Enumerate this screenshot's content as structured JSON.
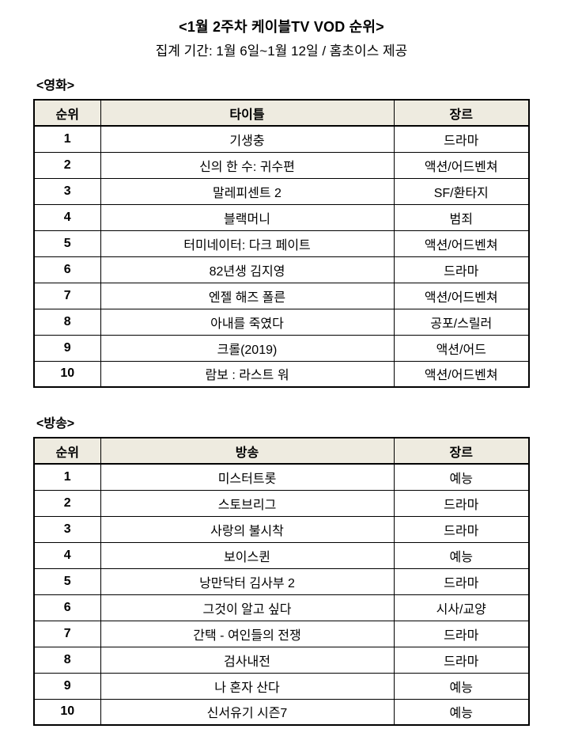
{
  "page": {
    "title": "<1월 2주차 케이블TV VOD 순위>",
    "subtitle": "집계 기간: 1월 6일~1월 12일 / 홈초이스 제공"
  },
  "colors": {
    "header_bg": "#EEEBE0",
    "border": "#000000",
    "text": "#000000"
  },
  "movies": {
    "section_label": "<영화>",
    "headers": [
      "순위",
      "타이틀",
      "장르"
    ],
    "rows": [
      {
        "rank": "1",
        "title": "기생충",
        "genre": "드라마"
      },
      {
        "rank": "2",
        "title": "신의 한 수: 귀수편",
        "genre": "액션/어드벤쳐"
      },
      {
        "rank": "3",
        "title": "말레피센트 2",
        "genre": "SF/환타지"
      },
      {
        "rank": "4",
        "title": "블랙머니",
        "genre": "범죄"
      },
      {
        "rank": "5",
        "title": "터미네이터: 다크 페이트",
        "genre": "액션/어드벤쳐"
      },
      {
        "rank": "6",
        "title": "82년생 김지영",
        "genre": "드라마"
      },
      {
        "rank": "7",
        "title": "엔젤 해즈 폴른",
        "genre": "액션/어드벤쳐"
      },
      {
        "rank": "8",
        "title": "아내를 죽였다",
        "genre": "공포/스릴러"
      },
      {
        "rank": "9",
        "title": "크롤(2019)",
        "genre": "액션/어드"
      },
      {
        "rank": "10",
        "title": "람보 : 라스트 워",
        "genre": "액션/어드벤쳐"
      }
    ]
  },
  "broadcast": {
    "section_label": "<방송>",
    "headers": [
      "순위",
      "방송",
      "장르"
    ],
    "rows": [
      {
        "rank": "1",
        "title": "미스터트롯",
        "genre": "예능"
      },
      {
        "rank": "2",
        "title": "스토브리그",
        "genre": "드라마"
      },
      {
        "rank": "3",
        "title": "사랑의 불시착",
        "genre": "드라마"
      },
      {
        "rank": "4",
        "title": "보이스퀸",
        "genre": "예능"
      },
      {
        "rank": "5",
        "title": "낭만닥터 김사부 2",
        "genre": "드라마"
      },
      {
        "rank": "6",
        "title": "그것이 알고 싶다",
        "genre": "시사/교양"
      },
      {
        "rank": "7",
        "title": "간택 - 여인들의 전쟁",
        "genre": "드라마"
      },
      {
        "rank": "8",
        "title": "검사내전",
        "genre": "드라마"
      },
      {
        "rank": "9",
        "title": "나 혼자 산다",
        "genre": "예능"
      },
      {
        "rank": "10",
        "title": "신서유기 시즌7",
        "genre": "예능"
      }
    ]
  }
}
